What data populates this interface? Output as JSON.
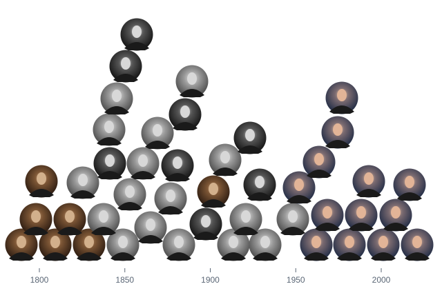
{
  "chart_data": {
    "type": "scatter",
    "title": "",
    "xlabel": "",
    "ylabel": "",
    "xlim": [
      1788,
      2028
    ],
    "x_ticks": [
      1800,
      1850,
      1900,
      1950,
      2000
    ],
    "tick_labels": [
      "1800",
      "1850",
      "1900",
      "1950",
      "2000"
    ],
    "grid": false,
    "legend": "none",
    "tones": {
      "sepia": "#6b4a2e",
      "bw": "#8a8a8a",
      "dark": "#3a3a3a",
      "color": "#5a6f8f"
    },
    "colors": {
      "axis_text": "#5a6675",
      "tick": "#5a6675"
    }
  }
}
